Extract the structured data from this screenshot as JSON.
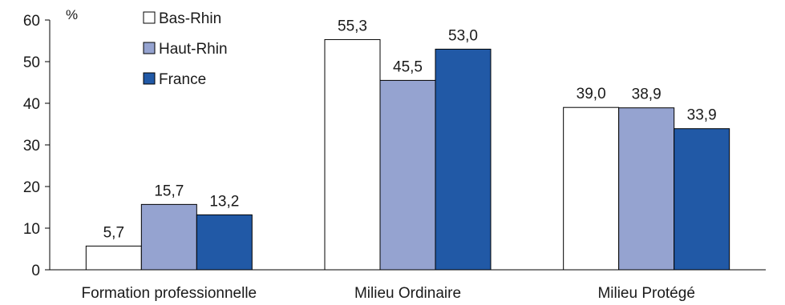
{
  "chart_data": {
    "type": "bar",
    "unit": "%",
    "categories": [
      "Formation professionnelle",
      "Milieu Ordinaire",
      "Milieu Protégé"
    ],
    "series": [
      {
        "name": "Bas-Rhin",
        "color": "#ffffff",
        "values": [
          5.7,
          55.3,
          39.0
        ],
        "labels": [
          "5,7",
          "55,3",
          "39,0"
        ]
      },
      {
        "name": "Haut-Rhin",
        "color": "#95a3d0",
        "values": [
          15.7,
          45.5,
          38.9
        ],
        "labels": [
          "15,7",
          "45,5",
          "38,9"
        ]
      },
      {
        "name": "France",
        "color": "#2159a6",
        "values": [
          13.2,
          53.0,
          33.9
        ],
        "labels": [
          "13,2",
          "53,0",
          "33,9"
        ]
      }
    ],
    "yticks": [
      "0",
      "10",
      "20",
      "30",
      "40",
      "50",
      "60"
    ],
    "ylim": [
      0,
      60
    ],
    "grid": false,
    "legend_position": "top-left"
  }
}
